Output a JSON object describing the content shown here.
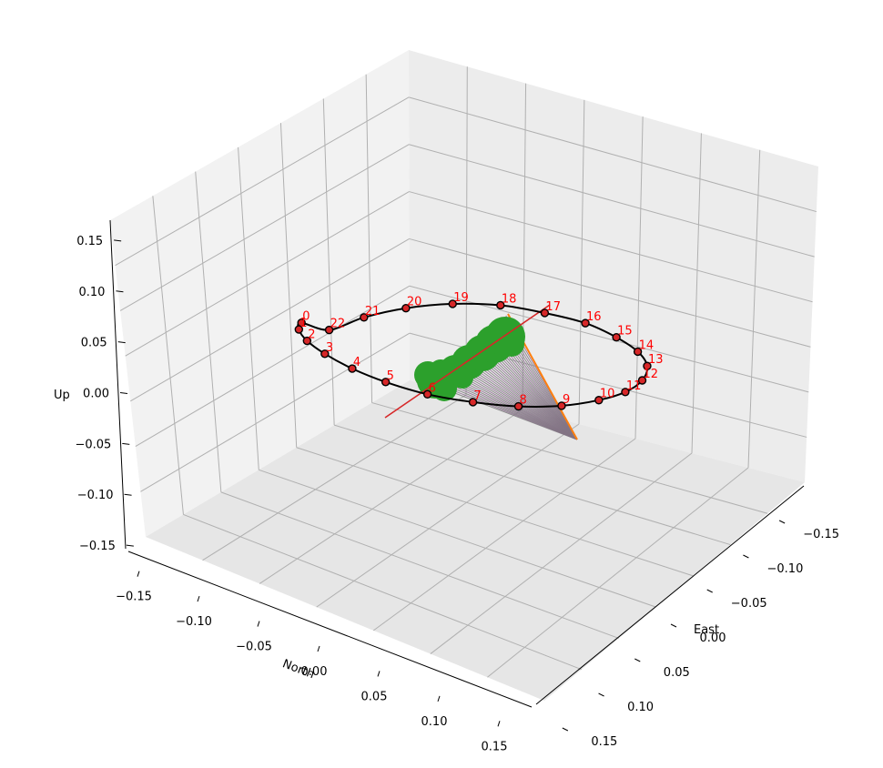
{
  "chart_data": {
    "type": "scatter",
    "projection": "3d",
    "grid": true,
    "colors": {
      "circle": "#000000",
      "hour_marker": "#d62728",
      "hour_label": "#ff0000",
      "line": "#d62728",
      "cone": "#808080",
      "cone_edge": "#ff7f0e",
      "blob": "#2ca02c",
      "pane_a": "#f2f2f2",
      "pane_b": "#e6e6e6",
      "pane_c": "#ececec",
      "grid": "#b0b0b0"
    },
    "axes": {
      "x": {
        "label": "North",
        "ticks": [
          "−0.15",
          "−0.10",
          "−0.05",
          "0.00",
          "0.05",
          "0.10",
          "0.15"
        ],
        "lim": [
          -0.15,
          0.15
        ]
      },
      "y": {
        "label": "East",
        "ticks": [
          "−0.15",
          "−0.10",
          "−0.05",
          "0.00",
          "0.05",
          "0.10",
          "0.15"
        ],
        "lim": [
          -0.15,
          0.15
        ]
      },
      "z": {
        "label": "Up",
        "ticks": [
          "−0.15",
          "−0.10",
          "−0.05",
          "0.00",
          "0.05",
          "0.10",
          "0.15"
        ],
        "lim": [
          -0.15,
          0.15
        ]
      }
    },
    "hour_points": [
      {
        "label": "0",
        "north": -0.074,
        "east": 0.066,
        "up": 0.096
      },
      {
        "label": "1",
        "north": -0.092,
        "east": 0.05,
        "up": 0.072
      },
      {
        "label": "2",
        "north": -0.101,
        "east": 0.034,
        "up": 0.044
      },
      {
        "label": "3",
        "north": -0.104,
        "east": 0.016,
        "up": 0.013
      },
      {
        "label": "4",
        "north": -0.099,
        "east": -0.002,
        "up": -0.019
      },
      {
        "label": "5",
        "north": -0.088,
        "east": -0.019,
        "up": -0.048
      },
      {
        "label": "6",
        "north": -0.069,
        "east": -0.035,
        "up": -0.074
      },
      {
        "label": "7",
        "north": -0.045,
        "east": -0.049,
        "up": -0.093
      },
      {
        "label": "8",
        "north": -0.018,
        "east": -0.06,
        "up": -0.105
      },
      {
        "label": "9",
        "north": 0.011,
        "east": -0.067,
        "up": -0.108
      },
      {
        "label": "10",
        "north": 0.039,
        "east": -0.07,
        "up": -0.102
      },
      {
        "label": "11",
        "north": 0.064,
        "east": -0.067,
        "up": -0.088
      },
      {
        "label": "12",
        "north": 0.085,
        "east": -0.06,
        "up": -0.067
      },
      {
        "label": "13",
        "north": 0.1,
        "east": -0.049,
        "up": -0.04
      },
      {
        "label": "14",
        "north": 0.107,
        "east": -0.034,
        "up": -0.01
      },
      {
        "label": "15",
        "north": 0.106,
        "east": -0.017,
        "up": 0.021
      },
      {
        "label": "16",
        "north": 0.097,
        "east": 0.0,
        "up": 0.051
      },
      {
        "label": "17",
        "north": 0.081,
        "east": 0.018,
        "up": 0.077
      },
      {
        "label": "18",
        "north": 0.059,
        "east": 0.033,
        "up": 0.097
      },
      {
        "label": "19",
        "north": 0.033,
        "east": 0.047,
        "up": 0.109
      },
      {
        "label": "20",
        "north": 0.005,
        "east": 0.058,
        "up": 0.112
      },
      {
        "label": "21",
        "north": -0.023,
        "east": 0.065,
        "up": 0.106
      },
      {
        "label": "22",
        "north": -0.049,
        "east": 0.068,
        "up": 0.093
      }
    ]
  }
}
